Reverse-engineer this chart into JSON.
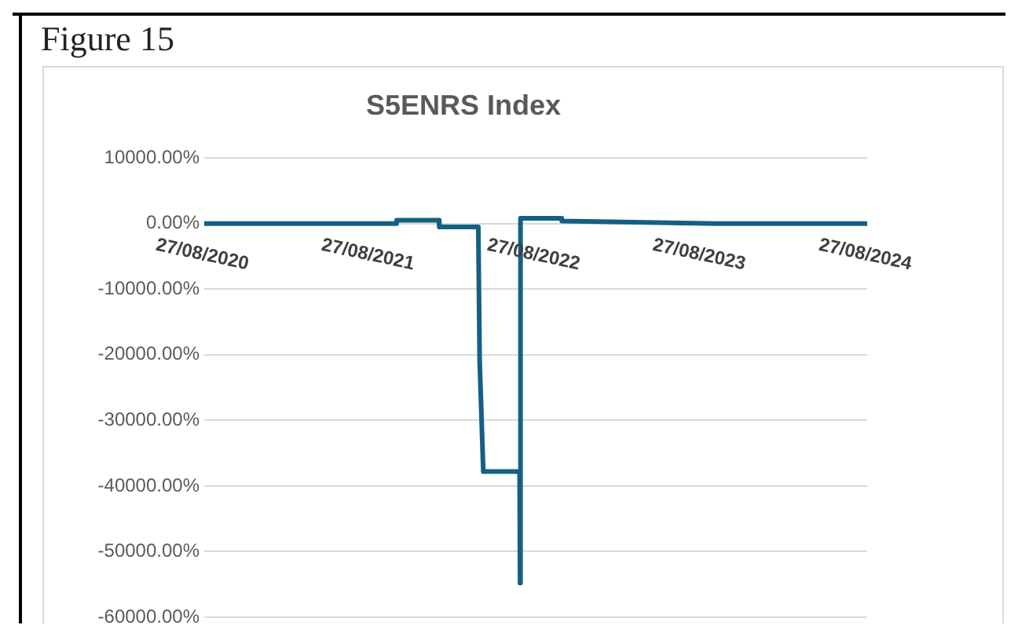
{
  "chart_data": {
    "type": "line",
    "title": "S5ENRS Index",
    "annotations": [
      "Figure 15"
    ],
    "series": [
      {
        "color": "#156082",
        "x": [
          "2020-08-27",
          "2021-05-10",
          "2021-10-24",
          "2021-10-25",
          "2022-01-26",
          "2022-01-27",
          "2022-04-23",
          "2022-04-26",
          "2022-05-04",
          "2022-07-23",
          "2022-07-24",
          "2022-07-25",
          "2022-10-23",
          "2022-10-24",
          "2023-09-29",
          "2024-08-27"
        ],
        "values": [
          0,
          0,
          0,
          500,
          500,
          -500,
          -500,
          -21000,
          -37800,
          -37800,
          -54800,
          800,
          800,
          400,
          0,
          0
        ]
      }
    ],
    "xlim": [
      "2020-08-27",
      "2024-08-27"
    ],
    "xticks": [
      {
        "value": "2020-08-27",
        "label": "27/08/2020"
      },
      {
        "value": "2021-08-27",
        "label": "27/08/2021"
      },
      {
        "value": "2022-08-27",
        "label": "27/08/2022"
      },
      {
        "value": "2023-08-27",
        "label": "27/08/2023"
      },
      {
        "value": "2024-08-27",
        "label": "27/08/2024"
      }
    ],
    "ylim": [
      -60000,
      10000
    ],
    "yticks": [
      {
        "value": 10000,
        "label": "10000.00%"
      },
      {
        "value": 0,
        "label": "0.00%"
      },
      {
        "value": -10000,
        "label": "-10000.00%"
      },
      {
        "value": -20000,
        "label": "-20000.00%"
      },
      {
        "value": -30000,
        "label": "-30000.00%"
      },
      {
        "value": -40000,
        "label": "-40000.00%"
      },
      {
        "value": -50000,
        "label": "-50000.00%"
      },
      {
        "value": -60000,
        "label": "-60000.00%"
      }
    ],
    "grid": "y",
    "legend": false,
    "marker": "none",
    "line_style": "solid"
  }
}
